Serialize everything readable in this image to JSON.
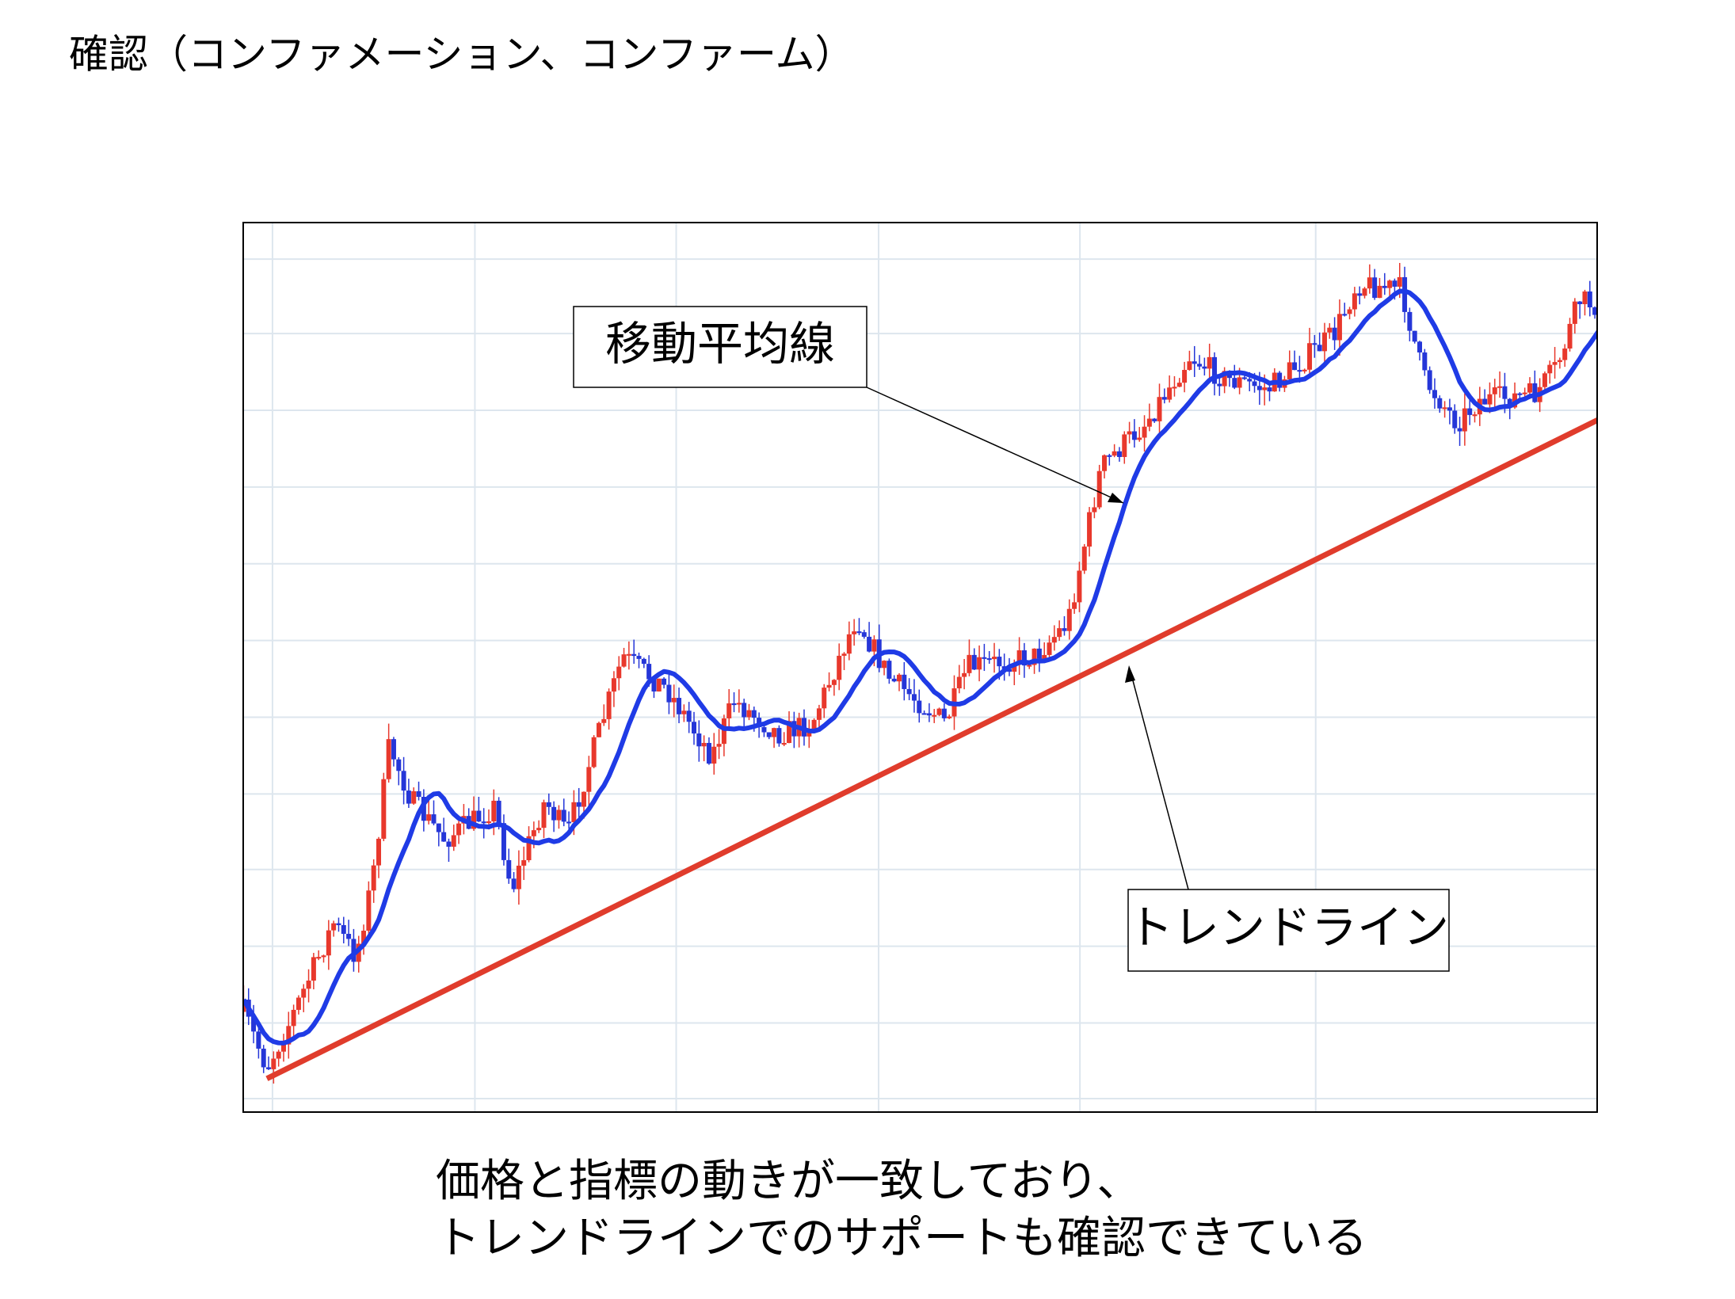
{
  "title": "確認（コンファメーション、コンファーム）",
  "labels": {
    "moving_average": "移動平均線",
    "trendline": "トレンドライン"
  },
  "caption": [
    "価格と指標の動きが一致しており、",
    "トレンドラインでのサポートも確認できている"
  ]
}
